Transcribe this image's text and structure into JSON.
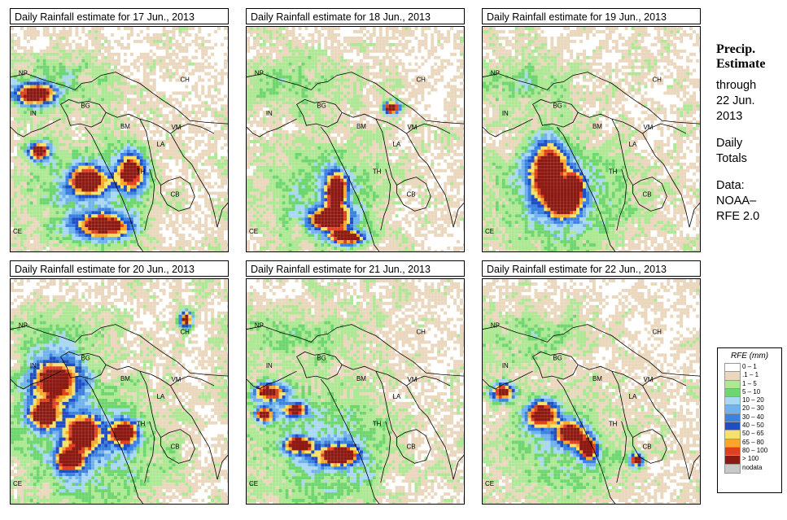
{
  "panels": [
    {
      "title": "Daily Rainfall estimate for  17 Jun., 2013",
      "seed": 17,
      "storms": [
        [
          0.11,
          0.3,
          0.09,
          0.05
        ],
        [
          0.35,
          0.68,
          0.08,
          0.06
        ],
        [
          0.55,
          0.64,
          0.06,
          0.08
        ],
        [
          0.42,
          0.88,
          0.12,
          0.05
        ],
        [
          0.13,
          0.55,
          0.05,
          0.04
        ]
      ],
      "rain": 1.0
    },
    {
      "title": "Daily Rainfall estimate for  18 Jun., 2013",
      "seed": 18,
      "storms": [
        [
          0.41,
          0.72,
          0.05,
          0.08
        ],
        [
          0.38,
          0.85,
          0.09,
          0.05
        ],
        [
          0.46,
          0.93,
          0.08,
          0.03
        ],
        [
          0.66,
          0.36,
          0.04,
          0.03
        ]
      ],
      "rain": 0.9
    },
    {
      "title": "Daily Rainfall estimate for  19 Jun., 2013",
      "seed": 19,
      "storms": [
        [
          0.3,
          0.65,
          0.08,
          0.13
        ],
        [
          0.38,
          0.78,
          0.07,
          0.06
        ],
        [
          0.42,
          0.7,
          0.04,
          0.05
        ]
      ],
      "rain": 1.1
    },
    {
      "title": "Daily Rainfall estimate for  20 Jun., 2013",
      "seed": 20,
      "storms": [
        [
          0.2,
          0.45,
          0.12,
          0.1
        ],
        [
          0.15,
          0.6,
          0.07,
          0.06
        ],
        [
          0.33,
          0.68,
          0.07,
          0.07
        ],
        [
          0.27,
          0.8,
          0.06,
          0.05
        ],
        [
          0.52,
          0.68,
          0.06,
          0.05
        ],
        [
          0.8,
          0.18,
          0.03,
          0.04
        ]
      ],
      "rain": 1.2
    },
    {
      "title": "Daily Rainfall estimate for  21 Jun., 2013",
      "seed": 21,
      "storms": [
        [
          0.1,
          0.5,
          0.07,
          0.04
        ],
        [
          0.22,
          0.58,
          0.05,
          0.03
        ],
        [
          0.24,
          0.73,
          0.06,
          0.03
        ],
        [
          0.42,
          0.78,
          0.09,
          0.04
        ],
        [
          0.08,
          0.6,
          0.04,
          0.03
        ]
      ],
      "rain": 1.1
    },
    {
      "title": "Daily Rainfall estimate for  22 Jun., 2013",
      "seed": 22,
      "storms": [
        [
          0.09,
          0.5,
          0.05,
          0.04
        ],
        [
          0.27,
          0.6,
          0.07,
          0.06
        ],
        [
          0.4,
          0.68,
          0.06,
          0.05
        ],
        [
          0.48,
          0.75,
          0.04,
          0.05
        ],
        [
          0.7,
          0.8,
          0.03,
          0.03
        ]
      ],
      "rain": 0.85
    }
  ],
  "country_labels": [
    "NP",
    "CH",
    "IN",
    "BG",
    "BM",
    "VM",
    "LA",
    "TH",
    "CB",
    "CE"
  ],
  "sidebar": {
    "heading1": "Precip.",
    "heading2": "Estimate",
    "through": "through",
    "date1": "22 Jun.",
    "date2": "2013",
    "daily1": "Daily",
    "daily2": "Totals",
    "data1": "Data:",
    "data2": "NOAA–",
    "data3": "RFE 2.0"
  },
  "legend": {
    "title": "RFE (mm)",
    "items": [
      {
        "label": "0 – 1",
        "color": "#ffffff"
      },
      {
        "label": ".1 – 1",
        "color": "#ead7bd"
      },
      {
        "label": "1 – 5",
        "color": "#aee895"
      },
      {
        "label": "5 – 10",
        "color": "#6ed66e"
      },
      {
        "label": "10 – 20",
        "color": "#a9d8f2"
      },
      {
        "label": "20 – 30",
        "color": "#6fb2ec"
      },
      {
        "label": "30 – 40",
        "color": "#3b82e0"
      },
      {
        "label": "40 – 50",
        "color": "#1f4dc4"
      },
      {
        "label": "50 – 65",
        "color": "#f6e26a"
      },
      {
        "label": "65 – 80",
        "color": "#f7a82a"
      },
      {
        "label": "80 – 100",
        "color": "#e0401e"
      },
      {
        "label": "> 100",
        "color": "#8c1a12"
      },
      {
        "label": "nodata",
        "color": "#c8c8c8"
      }
    ]
  }
}
